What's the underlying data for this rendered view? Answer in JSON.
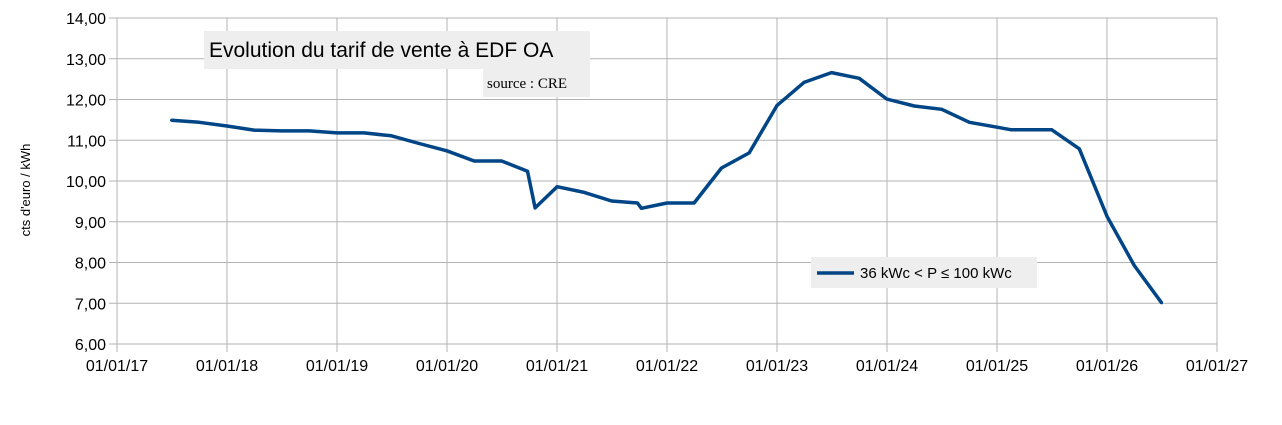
{
  "chart_data": {
    "type": "line",
    "title": "Evolution du tarif de vente à EDF OA",
    "subtitle": "source : CRE",
    "xlabel": "",
    "ylabel": "cts d'euro / kWh",
    "ylim": [
      6,
      14
    ],
    "yticks": [
      "6,00",
      "7,00",
      "8,00",
      "9,00",
      "10,00",
      "11,00",
      "12,00",
      "13,00",
      "14,00"
    ],
    "xlim": [
      "2017-01-01",
      "2027-01-01"
    ],
    "xticks": [
      "01/01/17",
      "01/01/18",
      "01/01/19",
      "01/01/20",
      "01/01/21",
      "01/01/22",
      "01/01/23",
      "01/01/24",
      "01/01/25",
      "01/01/26",
      "01/01/27"
    ],
    "grid": true,
    "legend_position": "bottom-right",
    "series": [
      {
        "name": "36 kWc < P ≤ 100 kWc",
        "color": "#004586",
        "points": [
          {
            "x": "2017-07-01",
            "y": 11.49
          },
          {
            "x": "2017-10-01",
            "y": 11.44
          },
          {
            "x": "2018-01-01",
            "y": 11.35
          },
          {
            "x": "2018-04-01",
            "y": 11.25
          },
          {
            "x": "2018-07-01",
            "y": 11.23
          },
          {
            "x": "2018-10-01",
            "y": 11.23
          },
          {
            "x": "2019-01-01",
            "y": 11.18
          },
          {
            "x": "2019-04-01",
            "y": 11.18
          },
          {
            "x": "2019-07-01",
            "y": 11.11
          },
          {
            "x": "2019-10-01",
            "y": 10.92
          },
          {
            "x": "2020-01-01",
            "y": 10.74
          },
          {
            "x": "2020-04-01",
            "y": 10.49
          },
          {
            "x": "2020-07-01",
            "y": 10.49
          },
          {
            "x": "2020-09-25",
            "y": 10.24
          },
          {
            "x": "2020-10-20",
            "y": 9.34
          },
          {
            "x": "2021-01-01",
            "y": 9.86
          },
          {
            "x": "2021-04-01",
            "y": 9.72
          },
          {
            "x": "2021-07-01",
            "y": 9.51
          },
          {
            "x": "2021-09-25",
            "y": 9.46
          },
          {
            "x": "2021-10-08",
            "y": 9.33
          },
          {
            "x": "2022-01-01",
            "y": 9.46
          },
          {
            "x": "2022-04-01",
            "y": 9.46
          },
          {
            "x": "2022-07-01",
            "y": 10.32
          },
          {
            "x": "2022-10-01",
            "y": 10.69
          },
          {
            "x": "2023-01-01",
            "y": 11.85
          },
          {
            "x": "2023-04-01",
            "y": 12.42
          },
          {
            "x": "2023-07-01",
            "y": 12.66
          },
          {
            "x": "2023-10-01",
            "y": 12.52
          },
          {
            "x": "2024-01-01",
            "y": 12.01
          },
          {
            "x": "2024-04-01",
            "y": 11.84
          },
          {
            "x": "2024-07-01",
            "y": 11.76
          },
          {
            "x": "2024-10-01",
            "y": 11.44
          },
          {
            "x": "2025-01-01",
            "y": 11.32
          },
          {
            "x": "2025-02-15",
            "y": 11.26
          },
          {
            "x": "2025-07-01",
            "y": 11.26
          },
          {
            "x": "2025-10-01",
            "y": 10.79
          },
          {
            "x": "2026-01-01",
            "y": 9.13
          },
          {
            "x": "2026-04-01",
            "y": 7.93
          },
          {
            "x": "2026-07-01",
            "y": 7.01
          }
        ]
      }
    ]
  }
}
